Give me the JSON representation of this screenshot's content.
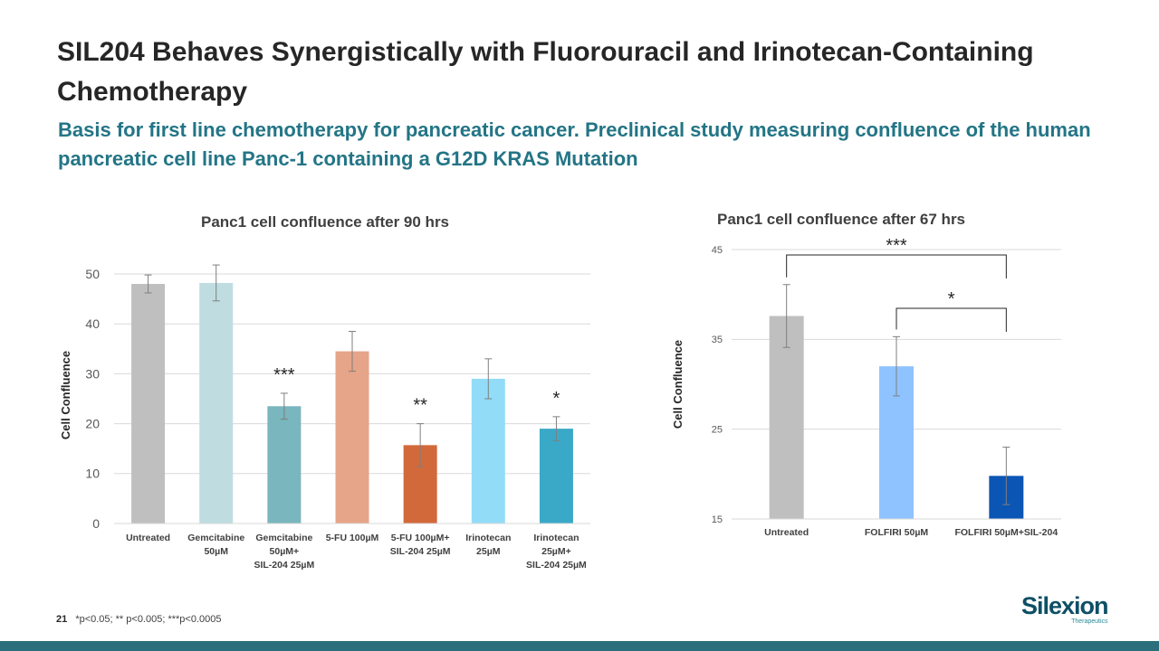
{
  "slide": {
    "title": "SIL204 Behaves Synergistically with Fluorouracil and Irinotecan-Containing Chemotherapy",
    "subtitle": "Basis for first line chemotherapy for pancreatic cancer.  Preclinical study measuring confluence of the human pancreatic cell line Panc-1 containing a G12D KRAS Mutation",
    "page_number": "21",
    "footnote": "*p<0.05; ** p<0.005; ***p<0.0005",
    "logo_text": "Silexion",
    "logo_tagline": "Therapeutics"
  },
  "chart_data": [
    {
      "type": "bar",
      "title": "Panc1 cell confluence after 90 hrs",
      "xlabel": "",
      "ylabel": "Cell Confluence",
      "ylim": [
        0,
        50
      ],
      "yticks": [
        0,
        10,
        20,
        30,
        40,
        50
      ],
      "grid": true,
      "categories": [
        [
          "Untreated"
        ],
        [
          "Gemcitabine",
          "50µM"
        ],
        [
          "Gemcitabine",
          "50µM+",
          "SIL-204 25µM"
        ],
        [
          "5-FU 100µM"
        ],
        [
          "5-FU 100µM+",
          "SIL-204 25µM"
        ],
        [
          "Irinotecan",
          "25µM"
        ],
        [
          "Irinotecan",
          "25µM+",
          "SIL-204 25µM"
        ]
      ],
      "values": [
        48,
        48.2,
        23.5,
        34.5,
        15.7,
        29,
        19
      ],
      "errors": [
        1.8,
        3.6,
        2.6,
        4,
        4.3,
        4,
        2.4
      ],
      "significance": [
        "",
        "",
        "***",
        "",
        "**",
        "",
        "*"
      ],
      "colors": [
        "#bfbfbf",
        "#bfdde0",
        "#79b6bd",
        "#e6a488",
        "#d2693a",
        "#92dcf8",
        "#3aa9c8"
      ]
    },
    {
      "type": "bar",
      "title": "Panc1 cell confluence after 67 hrs",
      "xlabel": "",
      "ylabel": "Cell Confluence",
      "ylim": [
        15,
        45
      ],
      "yticks": [
        15,
        25,
        35,
        45
      ],
      "grid": true,
      "categories": [
        [
          "Untreated"
        ],
        [
          "FOLFIRI 50µM"
        ],
        [
          "FOLFIRI 50µM+SIL-204"
        ]
      ],
      "values": [
        37.6,
        32,
        19.8
      ],
      "errors": [
        3.5,
        3.3,
        3.2
      ],
      "colors": [
        "#bfbfbf",
        "#8fc3ff",
        "#0b55b4"
      ],
      "brackets": [
        {
          "from": 0,
          "to": 2,
          "label": "***"
        },
        {
          "from": 1,
          "to": 2,
          "label": "*"
        }
      ]
    }
  ]
}
